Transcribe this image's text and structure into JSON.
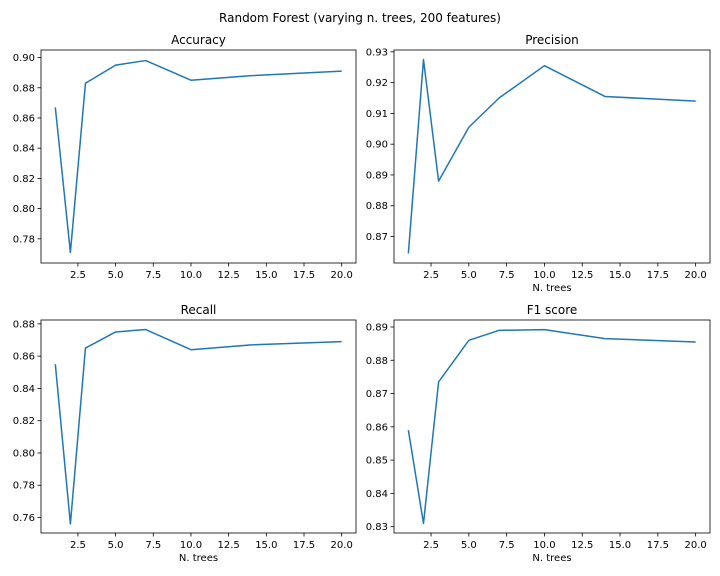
{
  "figure": {
    "title": "Random Forest (varying n. trees, 200 features)",
    "line_color": "#1f77b4"
  },
  "chart_data": [
    {
      "type": "line",
      "title": "Accuracy",
      "xlabel": "",
      "ylabel": "",
      "grid": false,
      "x": [
        1,
        2,
        3,
        5,
        7,
        10,
        14,
        20
      ],
      "series": [
        {
          "values": [
            0.867,
            0.771,
            0.883,
            0.895,
            0.898,
            0.885,
            0.888,
            0.891
          ]
        }
      ],
      "xlim": [
        0.05,
        20.95
      ],
      "ylim": [
        0.764,
        0.905
      ],
      "xticks": [
        2.5,
        5.0,
        7.5,
        10.0,
        12.5,
        15.0,
        17.5,
        20.0
      ],
      "xtick_labels": [
        "2.5",
        "5.0",
        "7.5",
        "10.0",
        "12.5",
        "15.0",
        "17.5",
        "20.0"
      ],
      "yticks": [
        0.78,
        0.8,
        0.82,
        0.84,
        0.86,
        0.88,
        0.9
      ],
      "ytick_labels": [
        "0.78",
        "0.80",
        "0.82",
        "0.84",
        "0.86",
        "0.88",
        "0.90"
      ]
    },
    {
      "type": "line",
      "title": "Precision",
      "xlabel": "N. trees",
      "ylabel": "",
      "grid": false,
      "x": [
        1,
        2,
        3,
        5,
        7,
        10,
        14,
        20
      ],
      "series": [
        {
          "values": [
            0.8645,
            0.9275,
            0.888,
            0.9055,
            0.915,
            0.9255,
            0.9155,
            0.914
          ]
        }
      ],
      "xlim": [
        0.05,
        20.95
      ],
      "ylim": [
        0.8614,
        0.9306
      ],
      "xticks": [
        2.5,
        5.0,
        7.5,
        10.0,
        12.5,
        15.0,
        17.5,
        20.0
      ],
      "xtick_labels": [
        "2.5",
        "5.0",
        "7.5",
        "10.0",
        "12.5",
        "15.0",
        "17.5",
        "20.0"
      ],
      "yticks": [
        0.87,
        0.88,
        0.89,
        0.9,
        0.91,
        0.92,
        0.93
      ],
      "ytick_labels": [
        "0.87",
        "0.88",
        "0.89",
        "0.90",
        "0.91",
        "0.92",
        "0.93"
      ]
    },
    {
      "type": "line",
      "title": "Recall",
      "xlabel": "N. trees",
      "ylabel": "",
      "grid": false,
      "x": [
        1,
        2,
        3,
        5,
        7,
        10,
        14,
        20
      ],
      "series": [
        {
          "values": [
            0.855,
            0.756,
            0.865,
            0.875,
            0.8765,
            0.864,
            0.867,
            0.869
          ]
        }
      ],
      "xlim": [
        0.05,
        20.95
      ],
      "ylim": [
        0.7504,
        0.8824
      ],
      "xticks": [
        2.5,
        5.0,
        7.5,
        10.0,
        12.5,
        15.0,
        17.5,
        20.0
      ],
      "xtick_labels": [
        "2.5",
        "5.0",
        "7.5",
        "10.0",
        "12.5",
        "15.0",
        "17.5",
        "20.0"
      ],
      "yticks": [
        0.76,
        0.78,
        0.8,
        0.82,
        0.84,
        0.86,
        0.88
      ],
      "ytick_labels": [
        "0.76",
        "0.78",
        "0.80",
        "0.82",
        "0.84",
        "0.86",
        "0.88"
      ]
    },
    {
      "type": "line",
      "title": "F1 score",
      "xlabel": "N. trees",
      "ylabel": "",
      "grid": false,
      "x": [
        1,
        2,
        3,
        5,
        7,
        10,
        14,
        20
      ],
      "series": [
        {
          "values": [
            0.859,
            0.831,
            0.8735,
            0.886,
            0.889,
            0.8892,
            0.8865,
            0.8855
          ]
        }
      ],
      "xlim": [
        0.05,
        20.95
      ],
      "ylim": [
        0.8281,
        0.8921
      ],
      "xticks": [
        2.5,
        5.0,
        7.5,
        10.0,
        12.5,
        15.0,
        17.5,
        20.0
      ],
      "xtick_labels": [
        "2.5",
        "5.0",
        "7.5",
        "10.0",
        "12.5",
        "15.0",
        "17.5",
        "20.0"
      ],
      "yticks": [
        0.83,
        0.84,
        0.85,
        0.86,
        0.87,
        0.88,
        0.89
      ],
      "ytick_labels": [
        "0.83",
        "0.84",
        "0.85",
        "0.86",
        "0.87",
        "0.88",
        "0.89"
      ]
    }
  ]
}
